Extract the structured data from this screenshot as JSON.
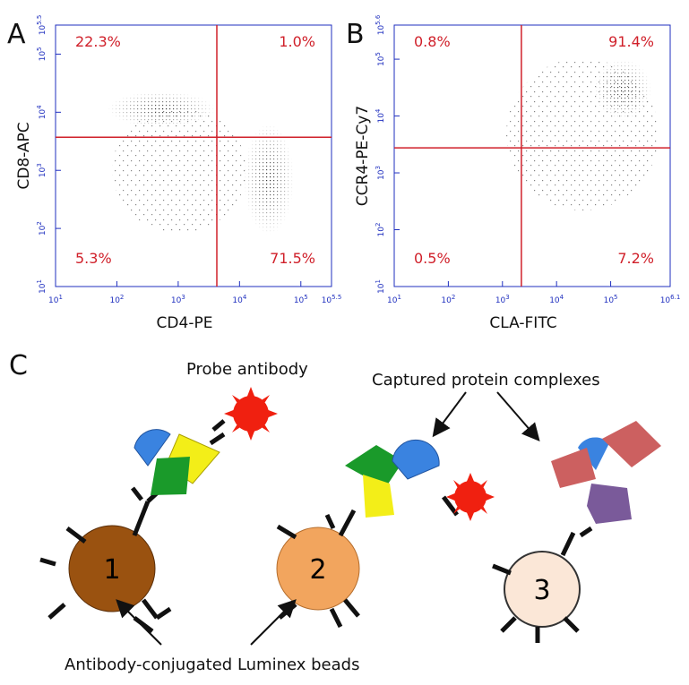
{
  "panels": [
    {
      "label": "A",
      "x_label": "CD4-PE",
      "y_label": "CD8-APC",
      "tick_base": "10",
      "xlim": [
        1,
        5.5
      ],
      "xticks": [
        1,
        2,
        3,
        4,
        5,
        5.5
      ],
      "ylim": [
        1,
        5.5
      ],
      "yticks": [
        1,
        2,
        3,
        4,
        5,
        5.5
      ],
      "gate_x": 3.63,
      "gate_y": 3.57,
      "quadrants": {
        "upper_left": "22.3%",
        "upper_right": "1.0%",
        "lower_left": "5.3%",
        "lower_right": "71.5%"
      }
    },
    {
      "label": "B",
      "x_label": "CLA-FITC",
      "y_label": "CCR4-PE-Cy7",
      "tick_base": "10",
      "xlim": [
        1,
        6.1
      ],
      "xticks": [
        1,
        2,
        3,
        4,
        5,
        6.1
      ],
      "ylim": [
        1,
        5.6
      ],
      "yticks": [
        1,
        2,
        3,
        4,
        5,
        5.6
      ],
      "gate_x": 3.35,
      "gate_y": 3.44,
      "quadrants": {
        "upper_left": "0.8%",
        "upper_right": "91.4%",
        "lower_left": "0.5%",
        "lower_right": "7.2%"
      }
    }
  ],
  "diagram": {
    "label": "C",
    "probe": "Probe antibody",
    "captured": "Captured protein complexes",
    "beads_caption": "Antibody-conjugated Luminex beads",
    "beads": [
      "1",
      "2",
      "3"
    ]
  }
}
